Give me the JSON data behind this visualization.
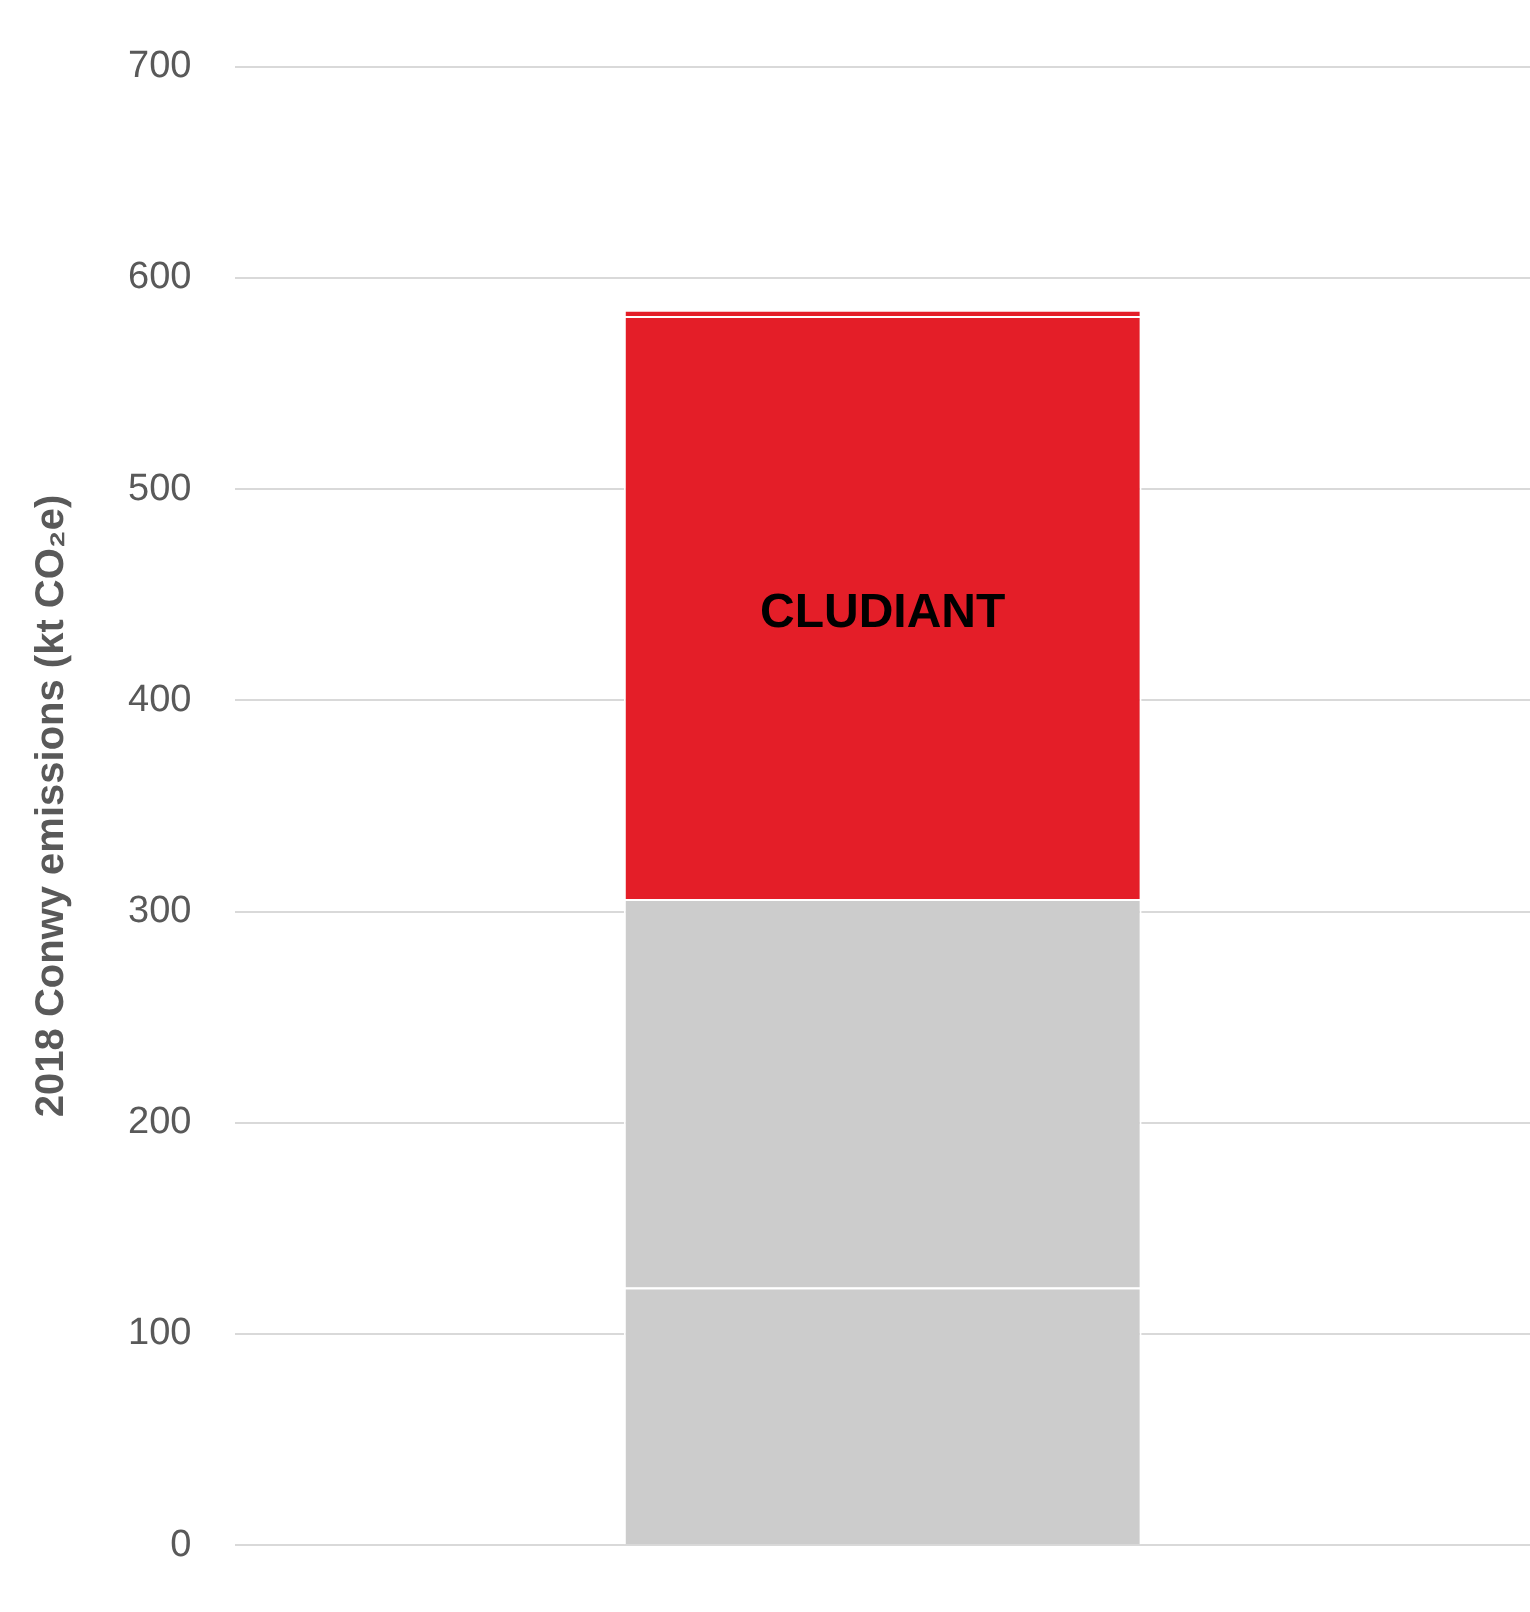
{
  "chart_data": {
    "type": "bar",
    "stacked": true,
    "ylabel": "2018 Conwy emissions (kt CO₂e)",
    "categories": [
      null
    ],
    "series": [
      {
        "color": "#cccccc",
        "values": [
          122
        ]
      },
      {
        "color": "#cccccc",
        "values": [
          184
        ]
      },
      {
        "color": "#e41e28",
        "values": [
          276
        ]
      },
      {
        "color": "#e41e28",
        "values": [
          3
        ]
      }
    ],
    "annotations": [
      "CLUDIANT"
    ],
    "ylim": [
      0,
      700
    ],
    "yticks": [
      0,
      100,
      200,
      300,
      400,
      500,
      600,
      700
    ],
    "grid": "y",
    "legend": false,
    "tick_labels": "y"
  }
}
